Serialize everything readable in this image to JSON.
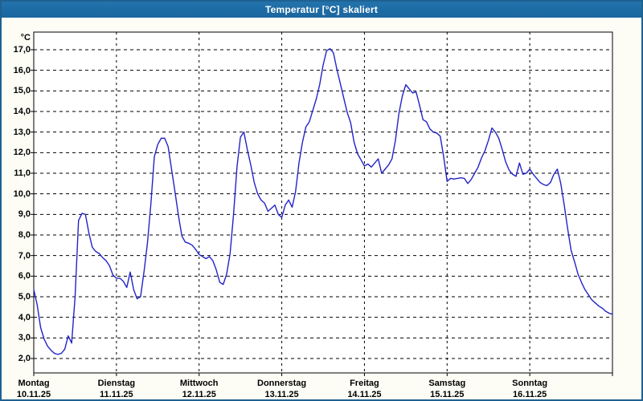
{
  "window": {
    "title": "Temperatur [°C] skaliert",
    "titlebar_color": "#1d6ba4",
    "border_color": "#1e6190",
    "background_color": "#fdfdf6"
  },
  "chart_data": {
    "type": "line",
    "title": "Temperatur [°C] skaliert",
    "ylabel": "°C",
    "xlabel": "",
    "legend": "none",
    "grid": "dashed black on white, horizontal every 1°C, vertical at day boundaries",
    "x_range_hours": [
      0,
      168
    ],
    "y_tick_values": [
      17,
      16,
      15,
      14,
      13,
      12,
      11,
      10,
      9,
      8,
      7,
      6,
      5,
      4,
      3,
      2
    ],
    "y_tick_labels": [
      "17,0",
      "16,0",
      "15,0",
      "14,0",
      "13,0",
      "12,0",
      "11,0",
      "10,0",
      "9,0",
      "8,0",
      "7,0",
      "6,0",
      "5,0",
      "4,0",
      "3,0",
      "2,0"
    ],
    "y_axis_plot_range": [
      1.3,
      17.9
    ],
    "days": [
      {
        "label": "Montag",
        "date": "10.11.25"
      },
      {
        "label": "Dienstag",
        "date": "11.11.25"
      },
      {
        "label": "Mittwoch",
        "date": "12.11.25"
      },
      {
        "label": "Donnerstag",
        "date": "13.11.25"
      },
      {
        "label": "Freitag",
        "date": "14.11.25"
      },
      {
        "label": "Samstag",
        "date": "15.11.25"
      },
      {
        "label": "Sonntag",
        "date": "16.11.25"
      }
    ],
    "series": [
      {
        "name": "Temperatur",
        "color": "#2323c8",
        "sample_interval_hours": 1,
        "values": [
          5.35,
          4.6,
          3.5,
          2.95,
          2.6,
          2.4,
          2.25,
          2.2,
          2.25,
          2.45,
          3.1,
          2.75,
          5.0,
          8.7,
          9.05,
          9.0,
          8.1,
          7.4,
          7.2,
          7.1,
          6.9,
          6.75,
          6.5,
          6.05,
          5.9,
          5.9,
          5.75,
          5.45,
          6.2,
          5.35,
          4.9,
          5.0,
          6.2,
          7.6,
          9.5,
          11.8,
          12.4,
          12.7,
          12.7,
          12.3,
          11.2,
          10.1,
          8.95,
          7.95,
          7.65,
          7.6,
          7.5,
          7.3,
          7.05,
          6.95,
          6.85,
          6.95,
          6.75,
          6.3,
          5.7,
          5.6,
          6.1,
          7.1,
          9.0,
          11.3,
          12.75,
          13.0,
          12.15,
          11.4,
          10.55,
          10.0,
          9.7,
          9.55,
          9.15,
          9.3,
          9.45,
          9.0,
          8.85,
          9.45,
          9.7,
          9.35,
          10.1,
          11.5,
          12.5,
          13.25,
          13.5,
          14.05,
          14.6,
          15.3,
          16.25,
          16.95,
          17.05,
          16.85,
          16.05,
          15.35,
          14.65,
          13.95,
          13.45,
          12.5,
          11.95,
          11.65,
          11.35,
          11.45,
          11.3,
          11.5,
          11.7,
          11.0,
          11.2,
          11.4,
          11.7,
          12.6,
          13.9,
          14.75,
          15.3,
          15.1,
          14.9,
          14.95,
          14.3,
          13.6,
          13.5,
          13.15,
          13.0,
          12.95,
          12.8,
          11.8,
          10.6,
          10.75,
          10.72,
          10.75,
          10.78,
          10.75,
          10.5,
          10.7,
          11.0,
          11.3,
          11.75,
          12.1,
          12.6,
          13.2,
          13.0,
          12.7,
          12.15,
          11.55,
          11.15,
          10.95,
          10.85,
          11.5,
          10.95,
          11.0,
          11.2,
          10.95,
          10.75,
          10.55,
          10.45,
          10.4,
          10.55,
          10.95,
          11.2,
          10.5,
          9.45,
          8.3,
          7.25,
          6.7,
          6.1,
          5.7,
          5.35,
          5.1,
          4.85,
          4.7,
          4.55,
          4.45,
          4.3,
          4.2,
          4.15
        ]
      }
    ]
  }
}
